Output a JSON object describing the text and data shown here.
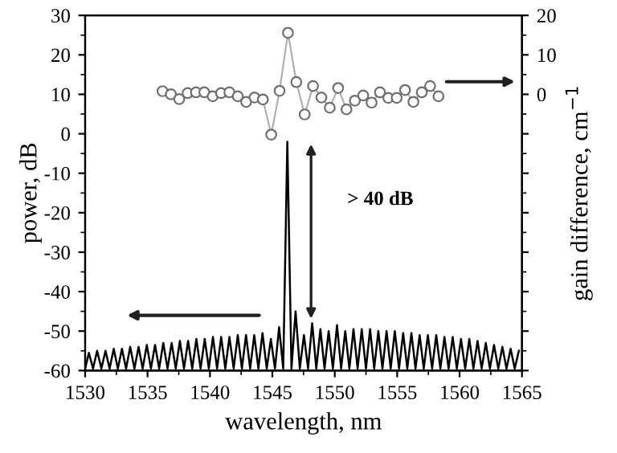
{
  "chart_data": {
    "type": "line",
    "xlabel": "wavelength, nm",
    "ylabel": "power, dB",
    "y2label": "gain difference, cm$^{−1}$",
    "xlim": [
      1530,
      1565
    ],
    "xticks": [
      1530,
      1535,
      1540,
      1545,
      1550,
      1555,
      1560,
      1565
    ],
    "ylim": [
      -60,
      30
    ],
    "yticks": [
      -60,
      -50,
      -40,
      -30,
      -20,
      -10,
      0,
      10,
      20,
      30
    ],
    "y2lim": [
      -70,
      20
    ],
    "y2ticks": [
      {
        "value": -70,
        "label": null
      },
      {
        "value": -60,
        "label": null
      },
      {
        "value": -50,
        "label": null
      },
      {
        "value": -40,
        "label": null
      },
      {
        "value": -30,
        "label": null
      },
      {
        "value": -20,
        "label": null
      },
      {
        "value": -10,
        "label": null
      },
      0,
      10,
      20
    ],
    "grid": false,
    "legend": false,
    "annotations": [
      "> 40 dB"
    ],
    "series": [
      {
        "color": "#000000",
        "marker": "none",
        "x": [
          1530.0,
          1530.3,
          1530.63,
          1530.96,
          1531.3,
          1531.63,
          1531.96,
          1532.29,
          1532.62,
          1532.95,
          1533.28,
          1533.61,
          1533.95,
          1534.28,
          1534.61,
          1534.94,
          1535.27,
          1535.6,
          1535.93,
          1536.26,
          1536.6,
          1536.93,
          1537.26,
          1537.59,
          1537.92,
          1538.25,
          1538.58,
          1538.91,
          1539.25,
          1539.58,
          1539.91,
          1540.24,
          1540.57,
          1540.9,
          1541.23,
          1541.56,
          1541.9,
          1542.23,
          1542.56,
          1542.89,
          1543.22,
          1543.55,
          1543.88,
          1544.21,
          1544.55,
          1544.88,
          1545.21,
          1545.54,
          1545.87,
          1546.2,
          1546.53,
          1546.86,
          1547.2,
          1547.53,
          1547.86,
          1548.19,
          1548.52,
          1548.85,
          1549.18,
          1549.51,
          1549.85,
          1550.18,
          1550.51,
          1550.84,
          1551.17,
          1551.5,
          1551.83,
          1552.16,
          1552.5,
          1552.83,
          1553.16,
          1553.49,
          1553.82,
          1554.15,
          1554.48,
          1554.81,
          1555.15,
          1555.48,
          1555.81,
          1556.14,
          1556.47,
          1556.8,
          1557.13,
          1557.46,
          1557.8,
          1558.13,
          1558.46,
          1558.79,
          1559.12,
          1559.45,
          1559.78,
          1560.11,
          1560.45,
          1560.78,
          1561.11,
          1561.44,
          1561.77,
          1562.1,
          1562.43,
          1562.76,
          1563.1,
          1563.43,
          1563.76,
          1564.09,
          1564.42,
          1564.75
        ],
        "values": [
          -59.5,
          -55.5,
          -59.5,
          -55,
          -59.5,
          -55,
          -59.5,
          -54.5,
          -59.5,
          -54.5,
          -59.5,
          -54,
          -59.5,
          -54,
          -59.5,
          -53.5,
          -59.5,
          -53.5,
          -59.5,
          -53,
          -59.5,
          -53,
          -59.5,
          -52.5,
          -59.5,
          -52.5,
          -59.5,
          -52,
          -59.5,
          -52,
          -59.5,
          -51.5,
          -59.5,
          -51.5,
          -59.5,
          -51.5,
          -59.5,
          -51,
          -59.5,
          -51,
          -59.5,
          -51,
          -59.5,
          -50.5,
          -59.5,
          -52,
          -59.5,
          -49,
          -59.5,
          -2,
          -59.5,
          -45,
          -59.5,
          -51,
          -59.5,
          -48,
          -59.5,
          -49.5,
          -59.5,
          -50,
          -59.5,
          -48.5,
          -59.5,
          -50,
          -59.5,
          -49.5,
          -59.5,
          -49.5,
          -59.5,
          -49.5,
          -59.5,
          -50,
          -59.5,
          -50,
          -59.5,
          -50,
          -59.5,
          -50.5,
          -59.5,
          -50.5,
          -59.5,
          -51,
          -59.5,
          -51,
          -59.5,
          -51,
          -59.5,
          -51.5,
          -59.5,
          -51.5,
          -59.5,
          -52,
          -59.5,
          -52,
          -59.5,
          -52.5,
          -59.5,
          -53,
          -59.5,
          -53.5,
          -59.5,
          -54,
          -59.5,
          -54.5,
          -59.5,
          -55
        ]
      },
      {
        "axis": "y2",
        "color": "#707070",
        "marker": "circle",
        "x": [
          1536.2,
          1536.87,
          1537.54,
          1538.21,
          1538.88,
          1539.55,
          1540.22,
          1540.89,
          1541.56,
          1542.23,
          1542.9,
          1543.57,
          1544.24,
          1544.91,
          1545.58,
          1546.25,
          1546.92,
          1547.59,
          1548.26,
          1548.93,
          1549.6,
          1550.27,
          1550.94,
          1551.61,
          1552.28,
          1552.95,
          1553.62,
          1554.29,
          1554.96,
          1555.63,
          1556.3,
          1556.97,
          1557.64,
          1558.31
        ],
        "values": [
          0.8,
          0,
          -1.2,
          0.3,
          0.5,
          0.5,
          -0.5,
          0.3,
          0.5,
          -0.5,
          -1.9,
          -0.8,
          -1.3,
          -10.2,
          0.9,
          15.6,
          3.1,
          -5.1,
          2.1,
          -0.8,
          -3.4,
          1.6,
          -3.8,
          -1.6,
          -0.3,
          -2.1,
          0.5,
          -0.9,
          -0.9,
          1.1,
          -1.9,
          0.5,
          2.1,
          -0.5
        ]
      }
    ]
  }
}
